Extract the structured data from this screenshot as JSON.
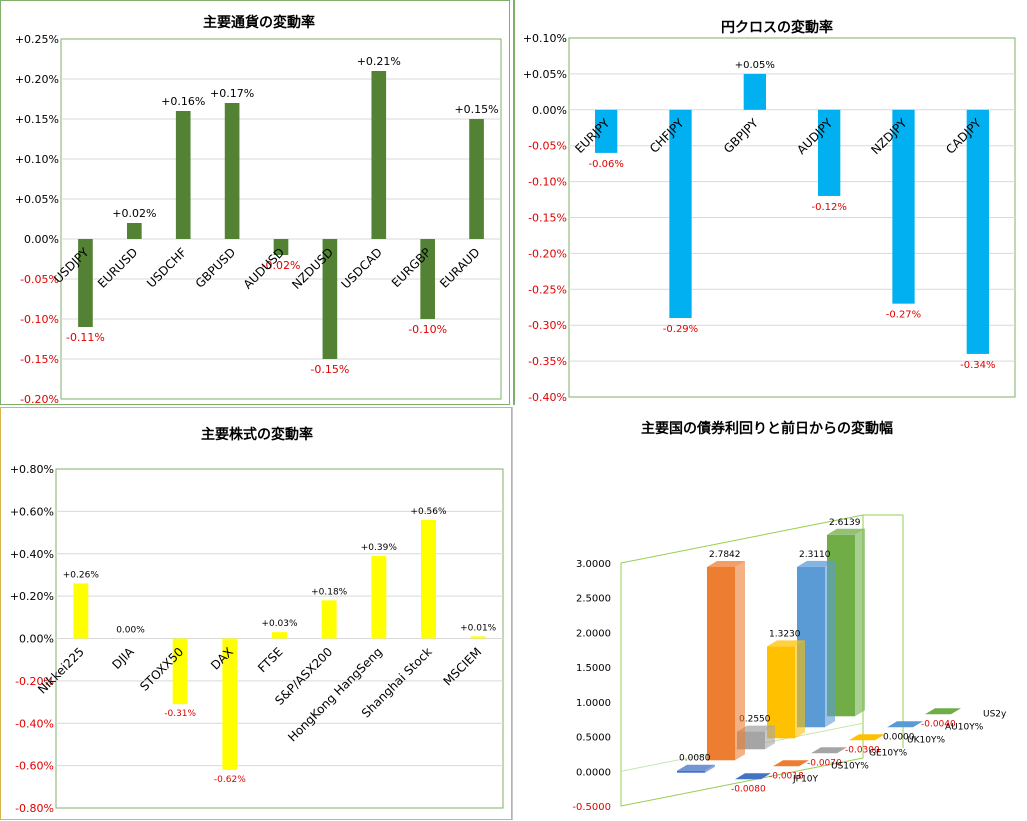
{
  "charts": [
    {
      "type": "bar",
      "title": "主要通貨の変動率",
      "color": "#548235",
      "categories": [
        "USDJPY",
        "EURUSD",
        "USDCHF",
        "GBPUSD",
        "AUDUSD",
        "NZDUSD",
        "USDCAD",
        "EURGBP",
        "EURAUD"
      ],
      "values": [
        -0.11,
        0.02,
        0.16,
        0.17,
        -0.02,
        -0.15,
        0.21,
        -0.1,
        0.15
      ],
      "value_labels": [
        "-0.11%",
        "+0.02%",
        "+0.16%",
        "+0.17%",
        "-0.02%",
        "-0.15%",
        "+0.21%",
        "-0.10%",
        "+0.15%"
      ],
      "ylim": [
        -0.2,
        0.25
      ],
      "ticks": [
        "+0.25%",
        "+0.20%",
        "+0.15%",
        "+0.10%",
        "+0.05%",
        "0.00%",
        "-0.05%",
        "-0.10%",
        "-0.15%",
        "-0.20%"
      ]
    },
    {
      "type": "bar",
      "title": "円クロスの変動率",
      "color": "#00b0f0",
      "categories": [
        "EURJPY",
        "CHFJPY",
        "GBPJPY",
        "AUDJPY",
        "NZDJPY",
        "CADJPY"
      ],
      "values": [
        -0.06,
        -0.29,
        0.05,
        -0.12,
        -0.27,
        -0.34
      ],
      "value_labels": [
        "-0.06%",
        "-0.29%",
        "+0.05%",
        "-0.12%",
        "-0.27%",
        "-0.34%"
      ],
      "ylim": [
        -0.4,
        0.1
      ],
      "ticks": [
        "+0.10%",
        "+0.05%",
        "0.00%",
        "-0.05%",
        "-0.10%",
        "-0.15%",
        "-0.20%",
        "-0.25%",
        "-0.30%",
        "-0.35%",
        "-0.40%"
      ]
    },
    {
      "type": "bar",
      "title": "主要株式の変動率",
      "color": "#ffff00",
      "categories": [
        "Nikkei225",
        "DJIA",
        "STOXX50",
        "DAX",
        "FTSE",
        "S&P/ASX200",
        "HongKong HangSeng",
        "Shanghai Stock",
        "MSCIEM"
      ],
      "values": [
        0.26,
        0.0,
        -0.31,
        -0.62,
        0.03,
        0.18,
        0.39,
        0.56,
        0.01
      ],
      "value_labels": [
        "+0.26%",
        "0.00%",
        "-0.31%",
        "-0.62%",
        "+0.03%",
        "+0.18%",
        "+0.39%",
        "+0.56%",
        "+0.01%"
      ],
      "ylim": [
        -0.8,
        0.8
      ],
      "ticks": [
        "+0.80%",
        "+0.60%",
        "+0.40%",
        "+0.20%",
        "0.00%",
        "-0.20%",
        "-0.40%",
        "-0.60%",
        "-0.80%"
      ]
    },
    {
      "type": "bar",
      "title": "主要国の債券利回りと前日からの変動幅",
      "ticks": [
        "3.0000",
        "2.5000",
        "2.0000",
        "1.5000",
        "1.0000",
        "0.5000",
        "0.0000",
        "-0.5000"
      ],
      "ylim": [
        -0.5,
        3.0
      ],
      "series": [
        {
          "name": "JP10Y",
          "value": 0.008,
          "change": -0.008,
          "value_label": "0.0080",
          "change_label": "-0.0080",
          "color": "#4472c4"
        },
        {
          "name": "US10Y%",
          "value": 2.7842,
          "change": -0.0018,
          "value_label": "2.7842",
          "change_label": "-0.0018",
          "color": "#ed7d31"
        },
        {
          "name": "GE10Y%",
          "value": 0.255,
          "change": -0.007,
          "value_label": "0.2550",
          "change_label": "-0.0070",
          "color": "#a5a5a5"
        },
        {
          "name": "UK10Y%",
          "value": 1.323,
          "change": -0.03,
          "value_label": "1.3230",
          "change_label": "-0.0300",
          "color": "#ffc000"
        },
        {
          "name": "AU10Y%",
          "value": 2.311,
          "change": 0.0,
          "value_label": "2.3110",
          "change_label": "0.0000",
          "color": "#5b9bd5"
        },
        {
          "name": "US2y",
          "value": 2.6139,
          "change": -0.004,
          "value_label": "2.6139",
          "change_label": "-0.0040",
          "color": "#70ad47"
        }
      ]
    }
  ]
}
